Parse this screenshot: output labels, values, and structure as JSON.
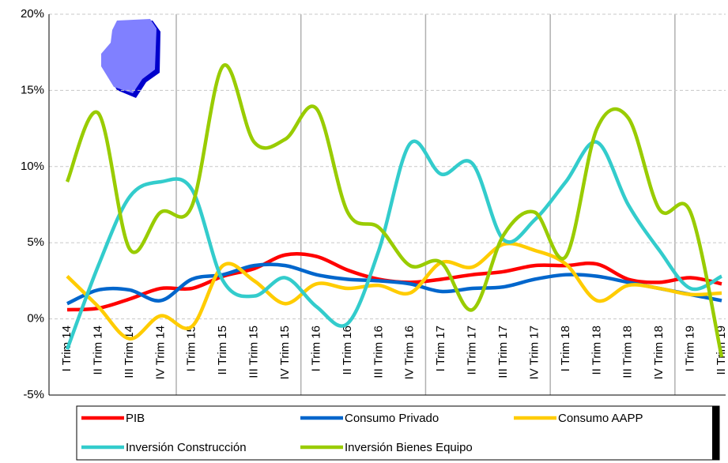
{
  "chart_data": {
    "type": "line",
    "categories": [
      "I Trim 14",
      "II Trim 14",
      "III Trim 14",
      "IV Trim 14",
      "I Trim 15",
      "II Trim 15",
      "III Trim 15",
      "IV Trim 15",
      "I Trim 16",
      "II Trim 16",
      "III Trim 16",
      "IV Trim 16",
      "I Trim 17",
      "II Trim 17",
      "III Trim 17",
      "IV Trim 17",
      "I Trim 18",
      "II Trim 18",
      "III Trim 18",
      "IV Trim 18",
      "I Trim 19",
      "II Trim 19"
    ],
    "series": [
      {
        "name": "PIB",
        "color": "#ff0000",
        "values": [
          0.6,
          0.7,
          1.3,
          2.0,
          2.0,
          2.8,
          3.3,
          4.2,
          4.1,
          3.2,
          2.6,
          2.4,
          2.6,
          2.9,
          3.1,
          3.5,
          3.5,
          3.6,
          2.6,
          2.4,
          2.7,
          2.3
        ]
      },
      {
        "name": "Consumo Privado",
        "color": "#0066cc",
        "values": [
          1.0,
          1.9,
          1.9,
          1.2,
          2.6,
          2.9,
          3.5,
          3.5,
          2.9,
          2.6,
          2.5,
          2.3,
          1.8,
          2.0,
          2.1,
          2.6,
          2.9,
          2.8,
          2.4,
          2.0,
          1.6,
          1.2
        ]
      },
      {
        "name": "Consumo AAPP",
        "color": "#ffcc00",
        "values": [
          2.8,
          0.8,
          -1.3,
          0.2,
          -0.5,
          3.5,
          2.5,
          1.0,
          2.3,
          2.0,
          2.2,
          1.7,
          3.7,
          3.4,
          4.9,
          4.5,
          3.6,
          1.2,
          2.2,
          2.0,
          1.6,
          1.7
        ]
      },
      {
        "name": "Inversión Construcción",
        "color": "#33cccc",
        "values": [
          -2.0,
          3.5,
          8.0,
          9.0,
          8.5,
          2.5,
          1.5,
          2.7,
          0.8,
          -0.3,
          4.5,
          11.5,
          9.5,
          10.2,
          5.2,
          6.5,
          9.0,
          11.6,
          7.5,
          4.5,
          2.0,
          2.8
        ]
      },
      {
        "name": "Inversión Bienes Equipo",
        "color": "#99cc00",
        "values": [
          9.0,
          13.5,
          4.6,
          7.0,
          7.4,
          16.6,
          11.6,
          11.8,
          13.8,
          7.0,
          6.0,
          3.5,
          3.7,
          0.6,
          5.5,
          7.0,
          4.1,
          12.5,
          13.2,
          7.2,
          7.0,
          -2.5
        ]
      }
    ],
    "ylim": [
      -5,
      20
    ],
    "yticks": [
      {
        "value": -5,
        "label": "-5%"
      },
      {
        "value": 0,
        "label": "0%"
      },
      {
        "value": 5,
        "label": "5%"
      },
      {
        "value": 10,
        "label": "10%"
      },
      {
        "value": 15,
        "label": "15%"
      },
      {
        "value": 20,
        "label": "20%"
      }
    ],
    "grid": true
  }
}
